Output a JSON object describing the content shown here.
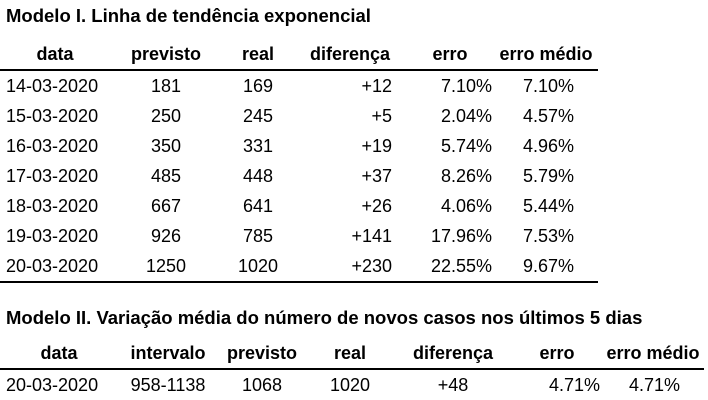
{
  "model1": {
    "title": "Modelo I. Linha de tendência exponencial",
    "headers": [
      "data",
      "previsto",
      "real",
      "diferença",
      "erro",
      "erro médio"
    ],
    "rows": [
      [
        "14-03-2020",
        "181",
        "169",
        "+12",
        "7.10%",
        "7.10%"
      ],
      [
        "15-03-2020",
        "250",
        "245",
        "+5",
        "2.04%",
        "4.57%"
      ],
      [
        "16-03-2020",
        "350",
        "331",
        "+19",
        "5.74%",
        "4.96%"
      ],
      [
        "17-03-2020",
        "485",
        "448",
        "+37",
        "8.26%",
        "5.79%"
      ],
      [
        "18-03-2020",
        "667",
        "641",
        "+26",
        "4.06%",
        "5.44%"
      ],
      [
        "19-03-2020",
        "926",
        "785",
        "+141",
        "17.96%",
        "7.53%"
      ],
      [
        "20-03-2020",
        "1250",
        "1020",
        "+230",
        "22.55%",
        "9.67%"
      ]
    ]
  },
  "model2": {
    "title": "Modelo II. Variação média do número de novos casos nos últimos 5 dias",
    "headers": [
      "data",
      "intervalo",
      "previsto",
      "real",
      "diferença",
      "erro",
      "erro médio"
    ],
    "rows": [
      [
        "20-03-2020",
        "958-1138",
        "1068",
        "1020",
        "+48",
        "4.71%",
        "4.71%"
      ]
    ]
  }
}
